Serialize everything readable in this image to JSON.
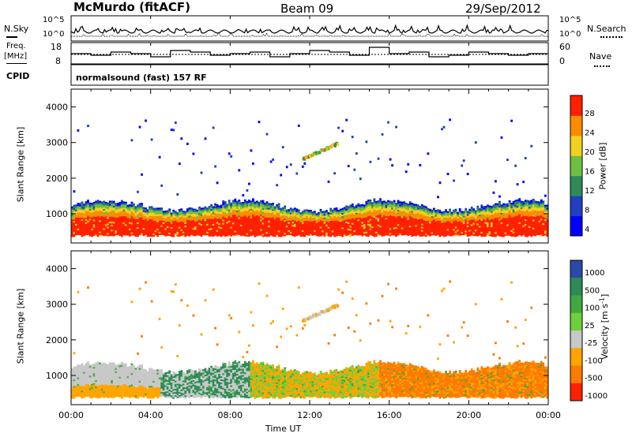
{
  "header": {
    "station": "McMurdo (fitACF)",
    "beam": "Beam 09",
    "date": "29/Sep/2012"
  },
  "noise_panel": {
    "left_label": "N.Sky",
    "right_label": "N.Search",
    "tick_top": "10^5",
    "tick_bottom": "10^0"
  },
  "freq_panel": {
    "left_label_line1": "Freq.",
    "left_label_line2": "[MHz]",
    "left_ticks": [
      "18",
      "8"
    ],
    "right_label": "Nave",
    "right_ticks": [
      "60",
      "0"
    ]
  },
  "cpid_panel": {
    "label": "CPID",
    "program": "normalsound (fast) 157 RF"
  },
  "chart_data": [
    {
      "type": "heatmap",
      "panel": "power",
      "ylabel": "Slant Range [km]",
      "xlabel": "",
      "xlim": [
        0,
        24
      ],
      "ylim": [
        180,
        4500
      ],
      "yticks": [
        1000,
        2000,
        3000,
        4000
      ],
      "colorbar": {
        "label": "Power [dB]",
        "ticks": [
          "28",
          "24",
          "20",
          "16",
          "12",
          "8",
          "4"
        ],
        "colors": [
          "#0000ff",
          "#2040c0",
          "#2e8b57",
          "#6fc040",
          "#f2d020",
          "#ff8c00",
          "#ff2000"
        ],
        "range": [
          0,
          30
        ]
      },
      "description_values": {
        "main_echo_band_km": [
          400,
          1300
        ],
        "sporadic_echo_km": [
          2400,
          3000
        ]
      }
    },
    {
      "type": "heatmap",
      "panel": "velocity",
      "ylabel": "Slant Range [km]",
      "xlabel": "Time UT",
      "xlim": [
        0,
        24
      ],
      "ylim": [
        180,
        4500
      ],
      "yticks": [
        1000,
        2000,
        3000,
        4000
      ],
      "xtick_labels": [
        "00:00",
        "04:00",
        "08:00",
        "12:00",
        "16:00",
        "20:00",
        "00:00"
      ],
      "colorbar": {
        "label": "Velocity [m s",
        "label_sup": "-1",
        "label_end": "]",
        "ticks": [
          "1000",
          "500",
          "100",
          "25",
          "-25",
          "-100",
          "-500",
          "-1000"
        ],
        "colors": [
          "#2a4aa8",
          "#2e8b57",
          "#3faa3f",
          "#6ecf3a",
          "#c8c8c8",
          "#ffa500",
          "#ff7a00",
          "#ff2000"
        ]
      }
    }
  ]
}
